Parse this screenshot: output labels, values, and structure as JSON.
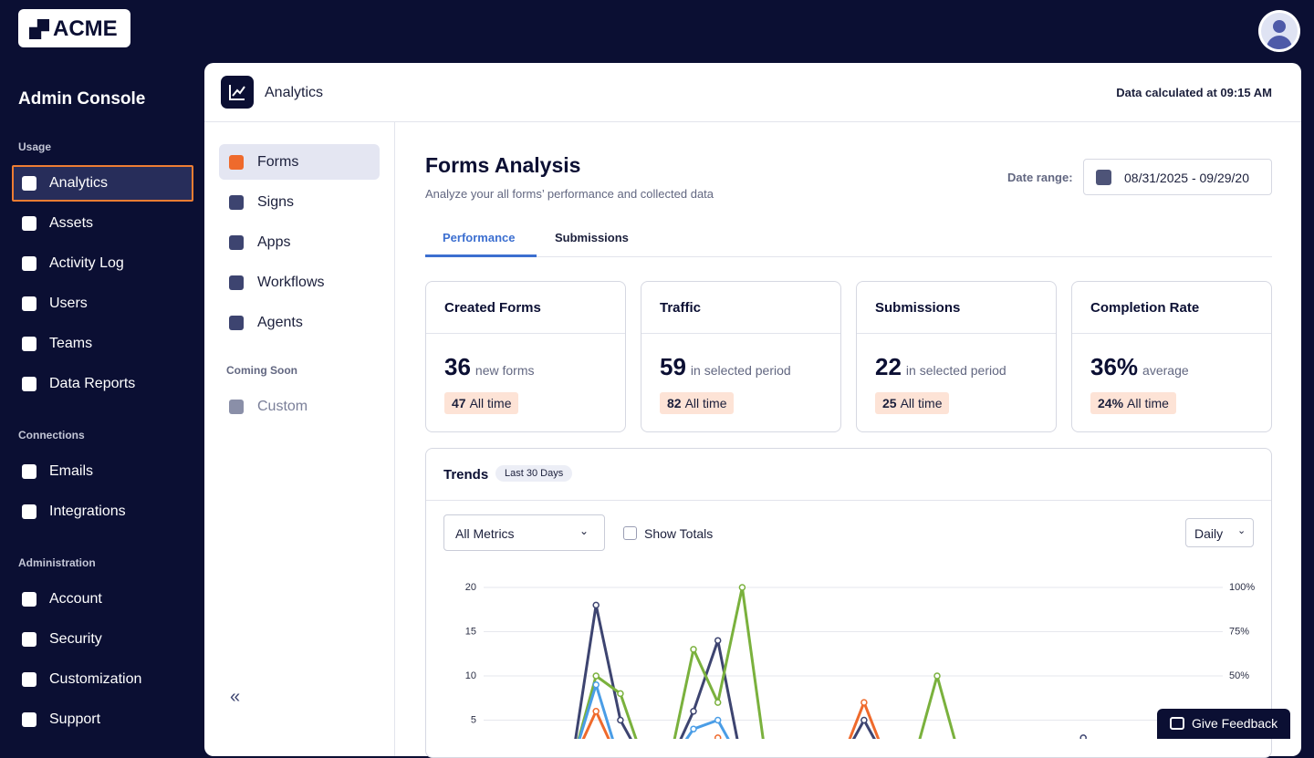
{
  "brand": "ACME",
  "sidebar": {
    "title": "Admin Console",
    "sections": [
      {
        "label": "Usage",
        "items": [
          "Analytics",
          "Assets",
          "Activity Log",
          "Users",
          "Teams",
          "Data Reports"
        ]
      },
      {
        "label": "Connections",
        "items": [
          "Emails",
          "Integrations"
        ]
      },
      {
        "label": "Administration",
        "items": [
          "Account",
          "Security",
          "Customization",
          "Support"
        ]
      }
    ]
  },
  "header": {
    "title": "Analytics",
    "status": "Data calculated at 09:15 AM"
  },
  "subnav": {
    "items": [
      "Forms",
      "Signs",
      "Apps",
      "Workflows",
      "Agents"
    ],
    "coming_soon_label": "Coming Soon",
    "coming_soon_items": [
      "Custom"
    ]
  },
  "content": {
    "title": "Forms Analysis",
    "subtitle": "Analyze your all forms’ performance and collected data",
    "date_range_label": "Date range:",
    "date_range": "08/31/2025 - 09/29/20",
    "tabs": [
      "Performance",
      "Submissions"
    ],
    "cards": [
      {
        "title": "Created Forms",
        "value": "36",
        "unit": "new forms",
        "total": "47",
        "total_label": "All time"
      },
      {
        "title": "Traffic",
        "value": "59",
        "unit": "in selected period",
        "total": "82",
        "total_label": "All time"
      },
      {
        "title": "Submissions",
        "value": "22",
        "unit": "in selected period",
        "total": "25",
        "total_label": "All time"
      },
      {
        "title": "Completion Rate",
        "value": "36%",
        "unit": "average",
        "total": "24%",
        "total_label": "All time"
      }
    ],
    "trends": {
      "title": "Trends",
      "badge": "Last 30 Days",
      "metric_select": "All Metrics",
      "show_totals": "Show Totals",
      "interval": "Daily"
    }
  },
  "feedback": "Give Feedback",
  "chart_data": {
    "type": "line",
    "categories": [
      null,
      null,
      null,
      null,
      null,
      null,
      null,
      null,
      null,
      null,
      null,
      null,
      null,
      null,
      null,
      null,
      null,
      null,
      null,
      null,
      null,
      null,
      null,
      null,
      null,
      null,
      null,
      null,
      null,
      null
    ],
    "ylim": [
      0,
      20
    ],
    "yticks": [
      5,
      10,
      15,
      20
    ],
    "y2lim": [
      0,
      100
    ],
    "y2ticks": [
      {
        "value": 50,
        "label": "50%"
      },
      {
        "value": 75,
        "label": "75%"
      },
      {
        "value": 100,
        "label": "100%"
      }
    ],
    "grid": true,
    "series": [
      {
        "color": "#3d4470",
        "values": [
          0,
          0,
          0,
          0,
          0,
          0,
          18,
          5,
          0,
          0,
          6,
          14,
          0,
          0,
          0,
          0,
          0,
          5,
          0,
          0,
          0,
          0,
          0,
          0,
          0,
          0,
          3,
          0,
          0,
          0
        ]
      },
      {
        "color": "#7ab13d",
        "values": [
          0,
          0,
          0,
          0,
          0,
          0,
          10,
          8,
          0,
          0,
          13,
          7,
          20,
          0,
          0,
          0,
          0,
          0,
          0,
          0,
          10,
          0,
          0,
          0,
          0,
          0,
          0,
          0,
          0,
          0
        ]
      },
      {
        "color": "#ef6a2c",
        "values": [
          0,
          0,
          0,
          0,
          0,
          0,
          6,
          0,
          0,
          0,
          0,
          3,
          0,
          0,
          0,
          0,
          0,
          7,
          0,
          0,
          0,
          0,
          0,
          0,
          0,
          0,
          0,
          0,
          0,
          0
        ]
      },
      {
        "color": "#4a9de6",
        "values": [
          0,
          0,
          0,
          0,
          0,
          0,
          9,
          0,
          0,
          0,
          4,
          5,
          0,
          0,
          0,
          0,
          0,
          0,
          0,
          0,
          0,
          0,
          0,
          0,
          0,
          0,
          0,
          0,
          0,
          0
        ]
      }
    ]
  }
}
